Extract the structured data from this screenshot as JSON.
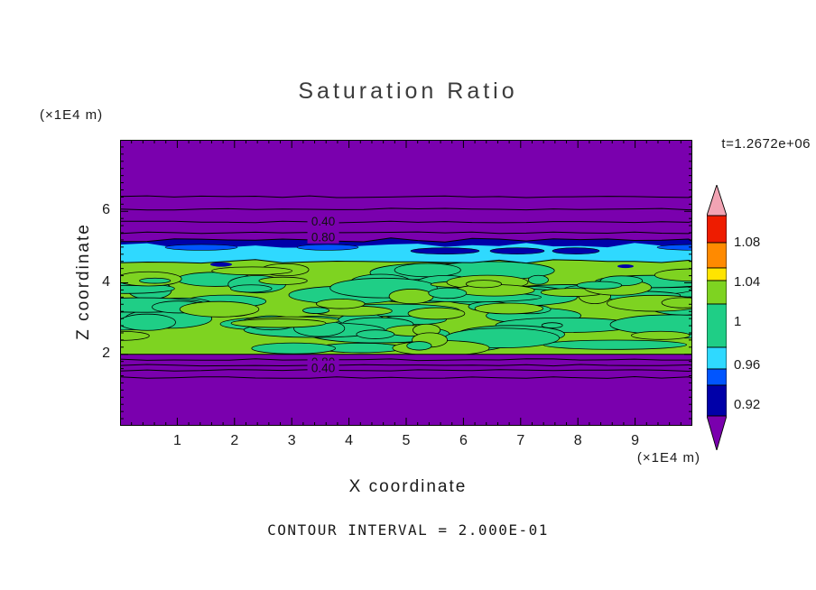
{
  "title": "Saturation Ratio",
  "timestamp": "t=1.2672e+06",
  "axes": {
    "x_label": "X coordinate",
    "y_label": "Z coordinate",
    "x_unit": "(×1E4 m)",
    "y_unit": "(×1E4 m)"
  },
  "footer": "CONTOUR INTERVAL = 2.000E-01",
  "chart_data": {
    "type": "heatmap",
    "title": "Saturation Ratio",
    "xlabel": "X coordinate (×1E4 m)",
    "ylabel": "Z coordinate (×1E4 m)",
    "xlim": [
      0,
      10
    ],
    "ylim": [
      0,
      8
    ],
    "x_ticks": [
      1,
      2,
      3,
      4,
      5,
      6,
      7,
      8,
      9
    ],
    "y_ticks": [
      2,
      4,
      6
    ],
    "minor_tick_step": 0.2,
    "time_annotation": "t=1.2672e+06",
    "contour_interval": "2.000E-01",
    "band_z": [
      2,
      4.64
    ],
    "field_bands": [
      {
        "z_range": [
          5.3,
          8.0
        ],
        "saturation": "< 0.92",
        "color_name": "purple"
      },
      {
        "z_range": [
          4.95,
          5.3
        ],
        "saturation": "0.92-0.96",
        "color_name": "dark blue"
      },
      {
        "z_range": [
          4.64,
          4.95
        ],
        "saturation": "0.96-1.00",
        "color_name": "cyan"
      },
      {
        "z_range": [
          2.0,
          4.64
        ],
        "saturation": "1.00-1.04 mottled turbulent layer",
        "color_name": "green"
      },
      {
        "z_range": [
          0,
          2.0
        ],
        "saturation": "< 0.92",
        "color_name": "purple"
      }
    ],
    "contour_lines_z": [
      6.41,
      6.06,
      5.7,
      5.4,
      1.85,
      1.7,
      1.55,
      1.35
    ],
    "contour_labels": [
      {
        "text": "0.40",
        "x": 3.55,
        "z": 5.72
      },
      {
        "text": "0.80",
        "x": 3.55,
        "z": 5.28
      },
      {
        "text": "0.80",
        "x": 3.55,
        "z": 1.78
      },
      {
        "text": "0.40",
        "x": 3.55,
        "z": 1.62
      }
    ],
    "palette": {
      "purple": "#7A00AE",
      "navy": "#0000A8",
      "blue": "#0055FF",
      "cyan": "#2FD9FF",
      "spring_green": "#1FCE86",
      "yellow_green": "#7ED321",
      "yellow": "#FFE400",
      "orange": "#FF8A00",
      "red": "#EE1C00",
      "pink": "#F2A4B4"
    },
    "colorbar": {
      "labels": [
        {
          "text": "1.08",
          "offset": 64
        },
        {
          "text": "1.04",
          "offset": 108
        },
        {
          "text": "1",
          "offset": 152
        },
        {
          "text": "0.96",
          "offset": 200
        },
        {
          "text": "0.92",
          "offset": 244
        }
      ],
      "segments": [
        {
          "color": "#F2A4B4",
          "height": 34,
          "shape": "arrow-up"
        },
        {
          "color": "#EE1C00",
          "height": 30
        },
        {
          "color": "#FF8A00",
          "height": 28
        },
        {
          "color": "#FFE400",
          "height": 14
        },
        {
          "color": "#7ED321",
          "height": 26
        },
        {
          "color": "#1FCE86",
          "height": 48
        },
        {
          "color": "#2FD9FF",
          "height": 24
        },
        {
          "color": "#0055FF",
          "height": 18
        },
        {
          "color": "#0000A8",
          "height": 34
        },
        {
          "color": "#7A00AE",
          "height": 38,
          "shape": "arrow-down"
        }
      ]
    }
  }
}
